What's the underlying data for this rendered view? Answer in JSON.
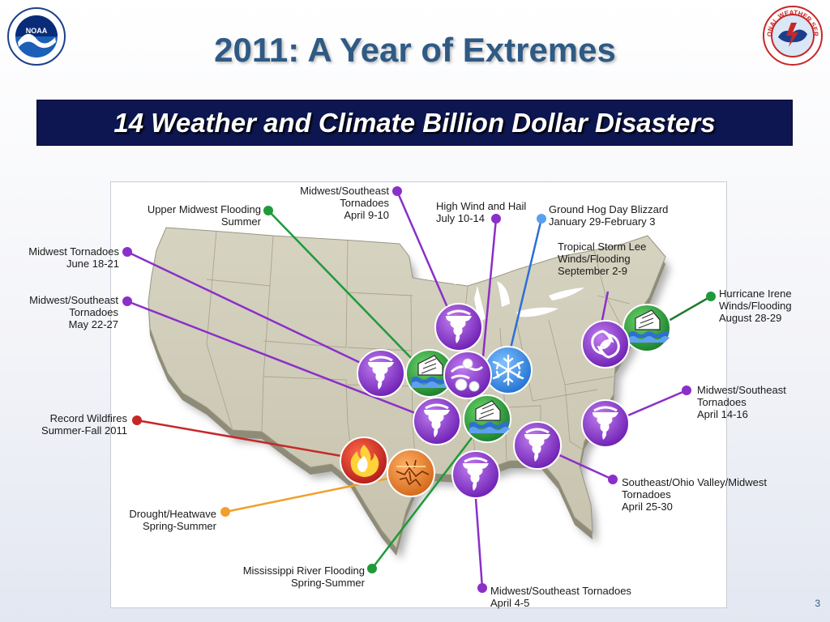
{
  "title": "2011: A Year of Extremes",
  "subtitle": "14 Weather and Climate Billion Dollar Disasters",
  "slide_number": "3",
  "logos": {
    "left": "noaa-logo",
    "right": "national-weather-service-logo",
    "right_text": "NATIONAL WEATHER SERVICE"
  },
  "colors": {
    "tornado": "#8b2fc9",
    "flood": "#1f9a3a",
    "blizzard": "#3b8ee8",
    "wildfire": "#c62828",
    "drought": "#f0a02a",
    "hurricane": "#1f7a2e",
    "banner": "#0d1650",
    "title": "#2f5a84"
  },
  "labels": [
    {
      "id": "upper-midwest-flooding",
      "lines": [
        "Upper Midwest Flooding",
        "Summer"
      ],
      "type": "flood"
    },
    {
      "id": "midwest-southeast-tornadoes-apr9",
      "lines": [
        "Midwest/Southeast",
        "Tornadoes",
        "April 9-10"
      ],
      "type": "tornado"
    },
    {
      "id": "high-wind-hail",
      "lines": [
        "High Wind and Hail",
        "July 10-14"
      ],
      "type": "tornado"
    },
    {
      "id": "ground-hog-day-blizzard",
      "lines": [
        "Ground Hog Day Blizzard",
        "January 29-February 3"
      ],
      "type": "blizzard"
    },
    {
      "id": "tropical-storm-lee",
      "lines": [
        "Tropical Storm Lee",
        "Winds/Flooding",
        "September 2-9"
      ],
      "type": "tornado"
    },
    {
      "id": "hurricane-irene",
      "lines": [
        "Hurricane Irene",
        "Winds/Flooding",
        "August 28-29"
      ],
      "type": "hurricane"
    },
    {
      "id": "midwest-tornadoes-jun",
      "lines": [
        "Midwest Tornadoes",
        "June 18-21"
      ],
      "type": "tornado"
    },
    {
      "id": "midwest-southeast-tornadoes-may",
      "lines": [
        "Midwest/Southeast",
        "Tornadoes",
        "May 22-27"
      ],
      "type": "tornado"
    },
    {
      "id": "midwest-southeast-tornadoes-apr14",
      "lines": [
        "Midwest/Southeast",
        "Tornadoes",
        "April 14-16"
      ],
      "type": "tornado"
    },
    {
      "id": "record-wildfires",
      "lines": [
        "Record Wildfires",
        "Summer-Fall 2011"
      ],
      "type": "wildfire"
    },
    {
      "id": "southeast-ohio-valley-tornadoes",
      "lines": [
        "Southeast/Ohio Valley/Midwest",
        "Tornadoes",
        "April 25-30"
      ],
      "type": "tornado"
    },
    {
      "id": "drought-heatwave",
      "lines": [
        "Drought/Heatwave",
        "Spring-Summer"
      ],
      "type": "drought"
    },
    {
      "id": "mississippi-river-flooding",
      "lines": [
        "Mississippi River Flooding",
        "Spring-Summer"
      ],
      "type": "flood"
    },
    {
      "id": "midwest-southeast-tornadoes-apr4",
      "lines": [
        "Midwest/Southeast Tornadoes",
        "April 4-5"
      ],
      "type": "tornado"
    }
  ],
  "icons": [
    {
      "id": "tornado-icon-apr9",
      "kind": "tornado"
    },
    {
      "id": "tornado-icon-jun",
      "kind": "tornado"
    },
    {
      "id": "flood-icon-upper-midwest",
      "kind": "flood"
    },
    {
      "id": "wind-hail-icon",
      "kind": "wind-hail"
    },
    {
      "id": "snowflake-icon",
      "kind": "snowflake"
    },
    {
      "id": "hurricane-icon-lee",
      "kind": "hurricane"
    },
    {
      "id": "flood-icon-irene",
      "kind": "flood"
    },
    {
      "id": "tornado-icon-may",
      "kind": "tornado"
    },
    {
      "id": "flood-icon-mississippi",
      "kind": "flood"
    },
    {
      "id": "tornado-icon-apr25",
      "kind": "tornado"
    },
    {
      "id": "tornado-icon-apr14",
      "kind": "tornado"
    },
    {
      "id": "fire-icon",
      "kind": "fire"
    },
    {
      "id": "drought-icon",
      "kind": "drought"
    },
    {
      "id": "tornado-icon-apr4",
      "kind": "tornado"
    }
  ]
}
